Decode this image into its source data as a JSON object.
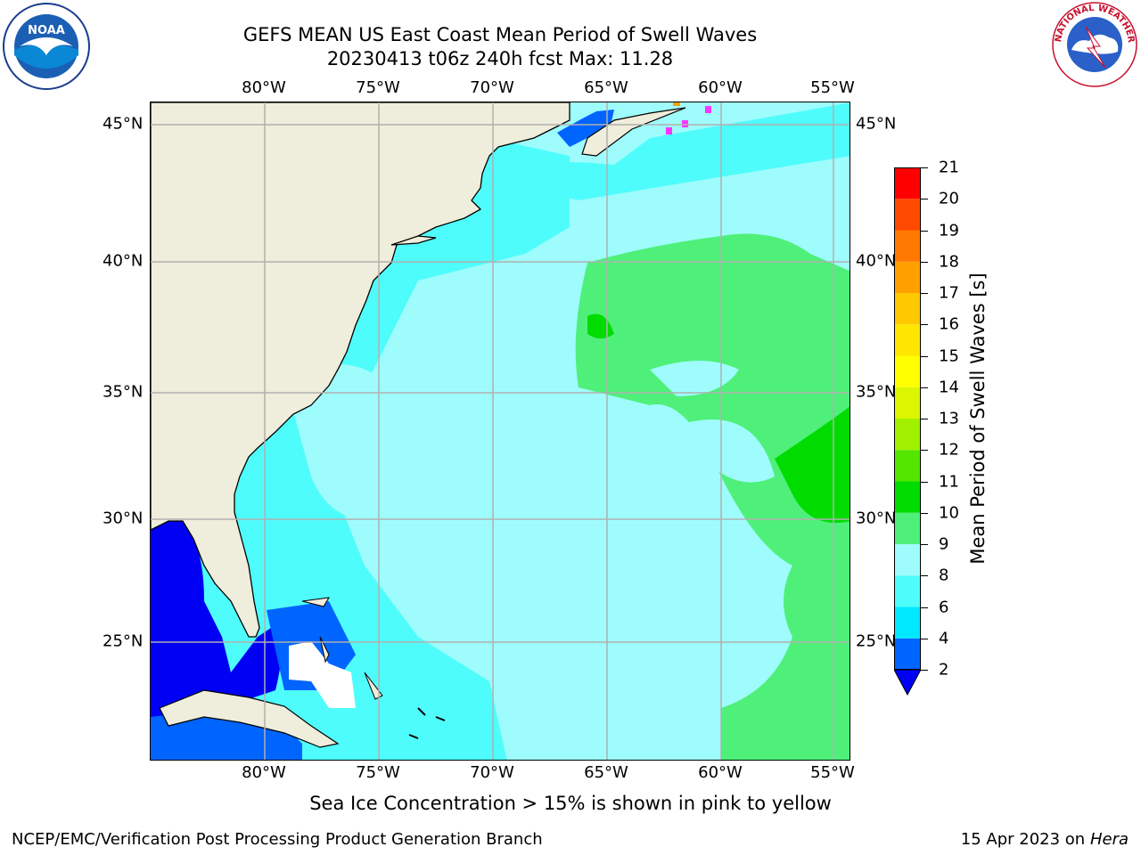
{
  "title_line1": "GEFS MEAN US East Coast Mean Period of Swell Waves",
  "title_line2": "20230413 t06z 240h fcst   Max: 11.28",
  "lon_labels": [
    "80°W",
    "75°W",
    "70°W",
    "65°W",
    "60°W",
    "55°W"
  ],
  "lat_labels": [
    "45°N",
    "40°N",
    "35°N",
    "30°N",
    "25°N"
  ],
  "colorbar": {
    "title": "Mean Period of Swell Waves [s]",
    "ticks": [
      "2",
      "4",
      "6",
      "8",
      "9",
      "10",
      "11",
      "12",
      "13",
      "14",
      "15",
      "16",
      "17",
      "18",
      "19",
      "20",
      "21"
    ],
    "colors": [
      "#0064ff",
      "#00e8ff",
      "#4ffcfc",
      "#9ffcfc",
      "#4ff07a",
      "#00dc00",
      "#55e600",
      "#a0f000",
      "#dcf500",
      "#ffff00",
      "#ffe600",
      "#ffc800",
      "#ffa000",
      "#ff7800",
      "#ff4a00",
      "#ff0000"
    ],
    "under_color": "#0000f5"
  },
  "ice_note": "Sea Ice Concentration > 15% is shown in pink to yellow",
  "credit": "NCEP/EMC/Verification Post Processing Product Generation Branch",
  "date_prefix": "15 Apr 2023 on",
  "date_host": "Hera",
  "noaa_logo_text": "NOAA",
  "nws_logo_text": "NATIONAL WEATHER SERVICE",
  "colors": {
    "land": "#efeddb",
    "grid": "#b0b0b0",
    "no_data": "#ffffff"
  }
}
